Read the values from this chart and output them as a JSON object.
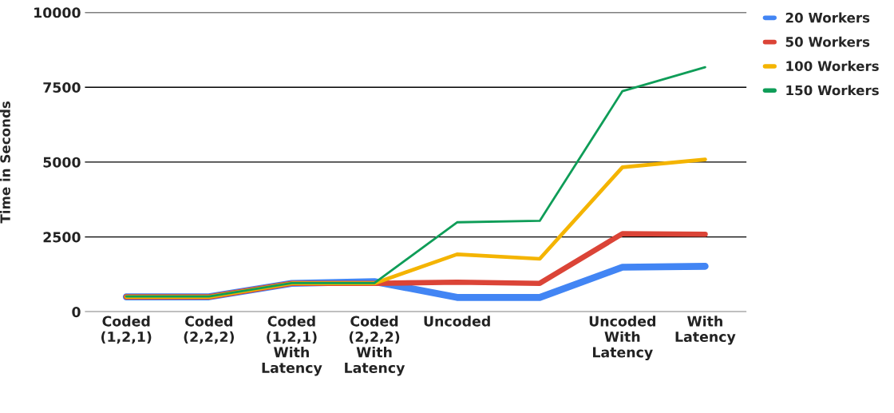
{
  "chart_data": {
    "type": "line",
    "ylabel": "Time in Seconds",
    "categories": [
      "Coded\n(1,2,1)",
      "Coded\n(2,2,2)",
      "Coded\n(1,2,1)\nWith\nLatency",
      "Coded\n(2,2,2)\nWith\nLatency",
      "Uncoded",
      null,
      "Uncoded\nWith\nLatency",
      "With\nLatency"
    ],
    "series": [
      {
        "name": "20 Workers",
        "color": "#4285f4",
        "values": [
          500,
          500,
          950,
          1010,
          480,
          480,
          1490,
          1520
        ]
      },
      {
        "name": "50 Workers",
        "color": "#db4437",
        "values": [
          500,
          500,
          950,
          950,
          990,
          950,
          2610,
          2590
        ]
      },
      {
        "name": "100 Workers",
        "color": "#f4b400",
        "values": [
          500,
          500,
          950,
          950,
          1920,
          1770,
          4830,
          5090
        ]
      },
      {
        "name": "150 Workers",
        "color": "#0f9d58",
        "values": [
          510,
          510,
          960,
          960,
          2990,
          3040,
          7370,
          8170
        ]
      }
    ],
    "ylim": [
      0,
      10000
    ],
    "yticks": [
      0,
      2500,
      5000,
      7500,
      10000
    ],
    "grid": "y",
    "legend": "top right",
    "marker": "none",
    "line_style": "solid"
  }
}
